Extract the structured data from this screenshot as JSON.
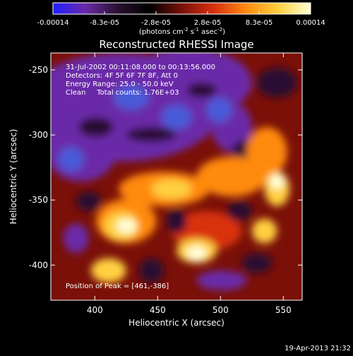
{
  "chart_data": {
    "type": "heatmap",
    "title": "Reconstructed RHESSI Image",
    "xlabel": "Heliocentric X (arcsec)",
    "ylabel": "Heliocentric Y (arcsec)",
    "xlim": [
      365,
      565
    ],
    "ylim": [
      -427,
      -237
    ],
    "x_ticks": [
      400,
      450,
      500,
      550
    ],
    "y_ticks": [
      -250,
      -300,
      -350,
      -400
    ],
    "grid": false,
    "annotations": [
      "31-Jul-2002 00:11:08.000 to 00:13:56.000",
      "Detectors: 4F 5F 6F 7F 8F, Att 0",
      "Energy Range: 25.0 - 50.0 keV",
      "Clean     Total counts: 1.76E+03"
    ],
    "peak_text": "Position of Peak = [461,-386]",
    "colorbar": {
      "ticks": [
        "-0.00014",
        "-8.3e-05",
        "-2.8e-05",
        "2.8e-05",
        "8.3e-05",
        "0.00014"
      ],
      "unit": "(photons cm",
      "unit_sup1": "-2",
      "unit_mid": " s",
      "unit_sup2": "-1",
      "unit_end": " asec",
      "unit_sup3": "-2",
      "unit_close": ")",
      "colors": [
        "#1f1fff",
        "#6a2aa8",
        "#2a1030",
        "#000000",
        "#7a1008",
        "#d83010",
        "#ff8a10",
        "#ffd040",
        "#ffffd8"
      ]
    }
  },
  "footer": {
    "timestamp": "19-Apr-2013 21:32"
  }
}
